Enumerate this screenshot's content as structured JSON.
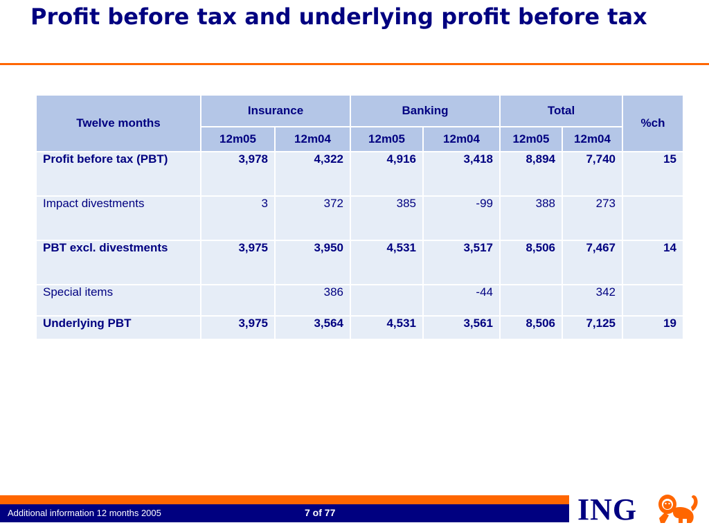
{
  "slide": {
    "title": "Profit before tax and underlying profit before tax"
  },
  "table": {
    "row_header": "Twelve months",
    "groups": [
      "Insurance",
      "Banking",
      "Total"
    ],
    "pct_header": "%ch",
    "periods": [
      "12m05",
      "12m04",
      "12m05",
      "12m04",
      "12m05",
      "12m04"
    ],
    "rows": [
      {
        "label": "Profit before tax (PBT)",
        "bold": true,
        "values": [
          "3,978",
          "4,322",
          "4,916",
          "3,418",
          "8,894",
          "7,740",
          "15"
        ]
      },
      {
        "label": "Impact divestments",
        "bold": false,
        "values": [
          "3",
          "372",
          "385",
          "-99",
          "388",
          "273",
          ""
        ]
      },
      {
        "label": "PBT excl. divestments",
        "bold": true,
        "values": [
          "3,975",
          "3,950",
          "4,531",
          "3,517",
          "8,506",
          "7,467",
          "14"
        ]
      },
      {
        "label": "Special items",
        "bold": false,
        "values": [
          "",
          "386",
          "",
          "-44",
          "",
          "342",
          ""
        ]
      },
      {
        "label": "Underlying PBT",
        "bold": true,
        "values": [
          "3,975",
          "3,564",
          "4,531",
          "3,561",
          "8,506",
          "7,125",
          "19"
        ]
      }
    ]
  },
  "footer": {
    "left_text": "Additional information 12 months 2005",
    "page": "7 of 77",
    "logo_text": "ING",
    "logo_icon": "lion-icon",
    "colors": {
      "accent": "#ff6600",
      "navy": "#000080",
      "header_fill": "#b4c6e7",
      "body_fill": "#e6edf7"
    }
  }
}
